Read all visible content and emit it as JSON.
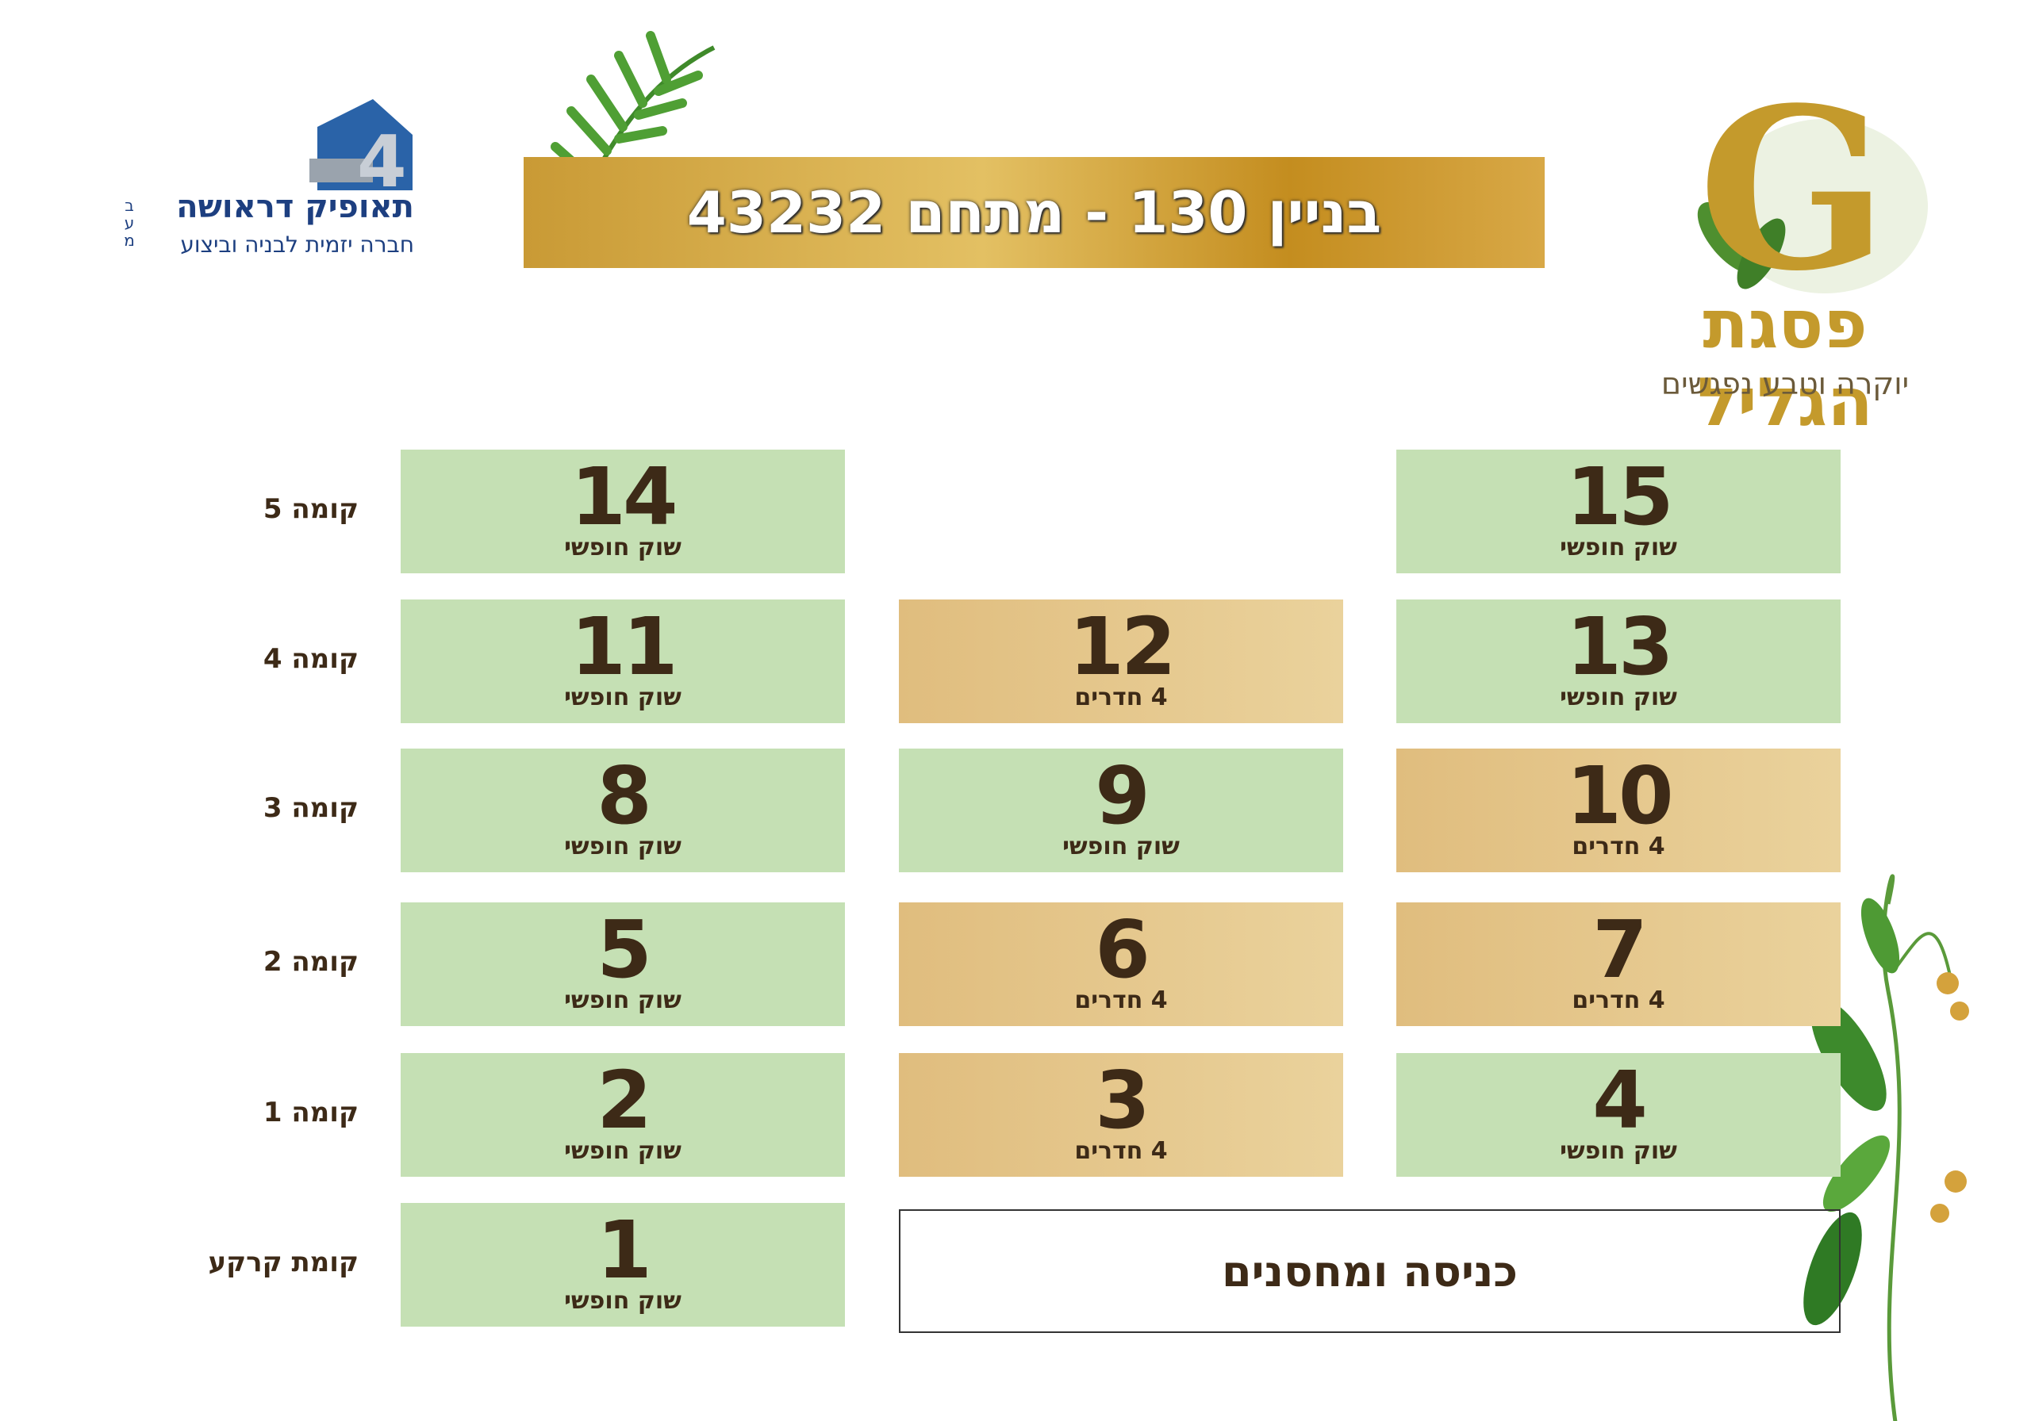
{
  "header": {
    "title": "בניין 130 - מתחם 43232"
  },
  "developer": {
    "name": "תאופיק דראושה",
    "suffix_lines": [
      "ב",
      "ע",
      "מ"
    ],
    "tagline": "חברה יזמית לבניה וביצוע"
  },
  "project": {
    "letter": "G",
    "name": "פסגת הגליל",
    "slogan": "יוקרה וטבע נפגשים"
  },
  "floors": [
    {
      "label": "קומה 5",
      "units": [
        {
          "number": 15,
          "status": "שוק חופשי",
          "color": "#c5e0b4"
        },
        null,
        {
          "number": 14,
          "status": "שוק חופשי",
          "color": "#c5e0b4"
        }
      ]
    },
    {
      "label": "קומה 4",
      "units": [
        {
          "number": 13,
          "status": "שוק חופשי",
          "color": "#c5e0b4"
        },
        {
          "number": 12,
          "status": "4 חדרים",
          "color": "#e0bd7e"
        },
        {
          "number": 11,
          "status": "שוק חופשי",
          "color": "#c5e0b4"
        }
      ]
    },
    {
      "label": "קומה 3",
      "units": [
        {
          "number": 10,
          "status": "4 חדרים",
          "color": "#e0bd7e"
        },
        {
          "number": 9,
          "status": "שוק חופשי",
          "color": "#c5e0b4"
        },
        {
          "number": 8,
          "status": "שוק חופשי",
          "color": "#c5e0b4"
        }
      ]
    },
    {
      "label": "קומה 2",
      "units": [
        {
          "number": 7,
          "status": "4 חדרים",
          "color": "#e0bd7e"
        },
        {
          "number": 6,
          "status": "4 חדרים",
          "color": "#e0bd7e"
        },
        {
          "number": 5,
          "status": "שוק חופשי",
          "color": "#c5e0b4"
        }
      ]
    },
    {
      "label": "קומה 1",
      "units": [
        {
          "number": 4,
          "status": "שוק חופשי",
          "color": "#c5e0b4"
        },
        {
          "number": 3,
          "status": "4 חדרים",
          "color": "#e0bd7e"
        },
        {
          "number": 2,
          "status": "שוק חופשי",
          "color": "#c5e0b4"
        }
      ]
    },
    {
      "label": "קומת קרקע",
      "units": [
        null,
        null,
        {
          "number": 1,
          "status": "שוק חופשי",
          "color": "#c5e0b4"
        }
      ],
      "entrance": "כניסה ומחסנים"
    }
  ]
}
